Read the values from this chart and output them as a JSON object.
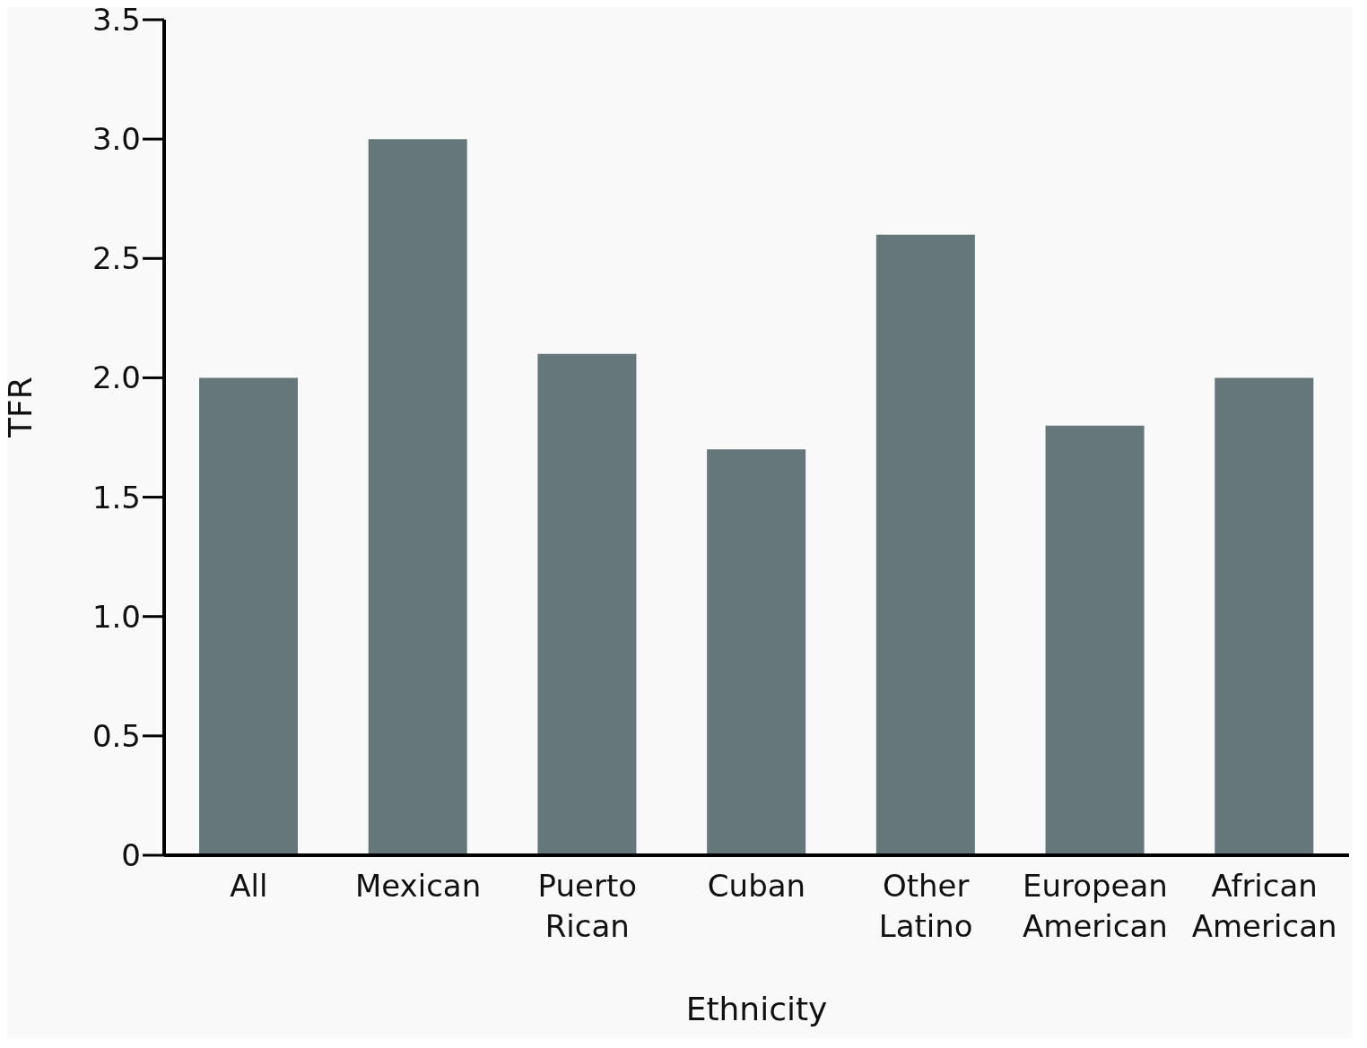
{
  "chart_data": {
    "type": "bar",
    "xlabel": "Ethnicity",
    "ylabel": "TFR",
    "categories": [
      "All",
      "Mexican",
      "Puerto Rican",
      "Cuban",
      "Other Latino",
      "European American",
      "African American"
    ],
    "values": [
      2.0,
      3.0,
      2.1,
      1.7,
      2.6,
      1.8,
      2.0
    ],
    "color": "#667779",
    "ylim": [
      0,
      3.5
    ],
    "yticks": [
      0,
      0.5,
      {
        "value": 1,
        "label": "1.0"
      },
      1.5,
      {
        "value": 2,
        "label": "2.0"
      },
      2.5,
      {
        "value": 3,
        "label": "3.0"
      },
      3.5
    ],
    "grid": false,
    "legend": false
  }
}
